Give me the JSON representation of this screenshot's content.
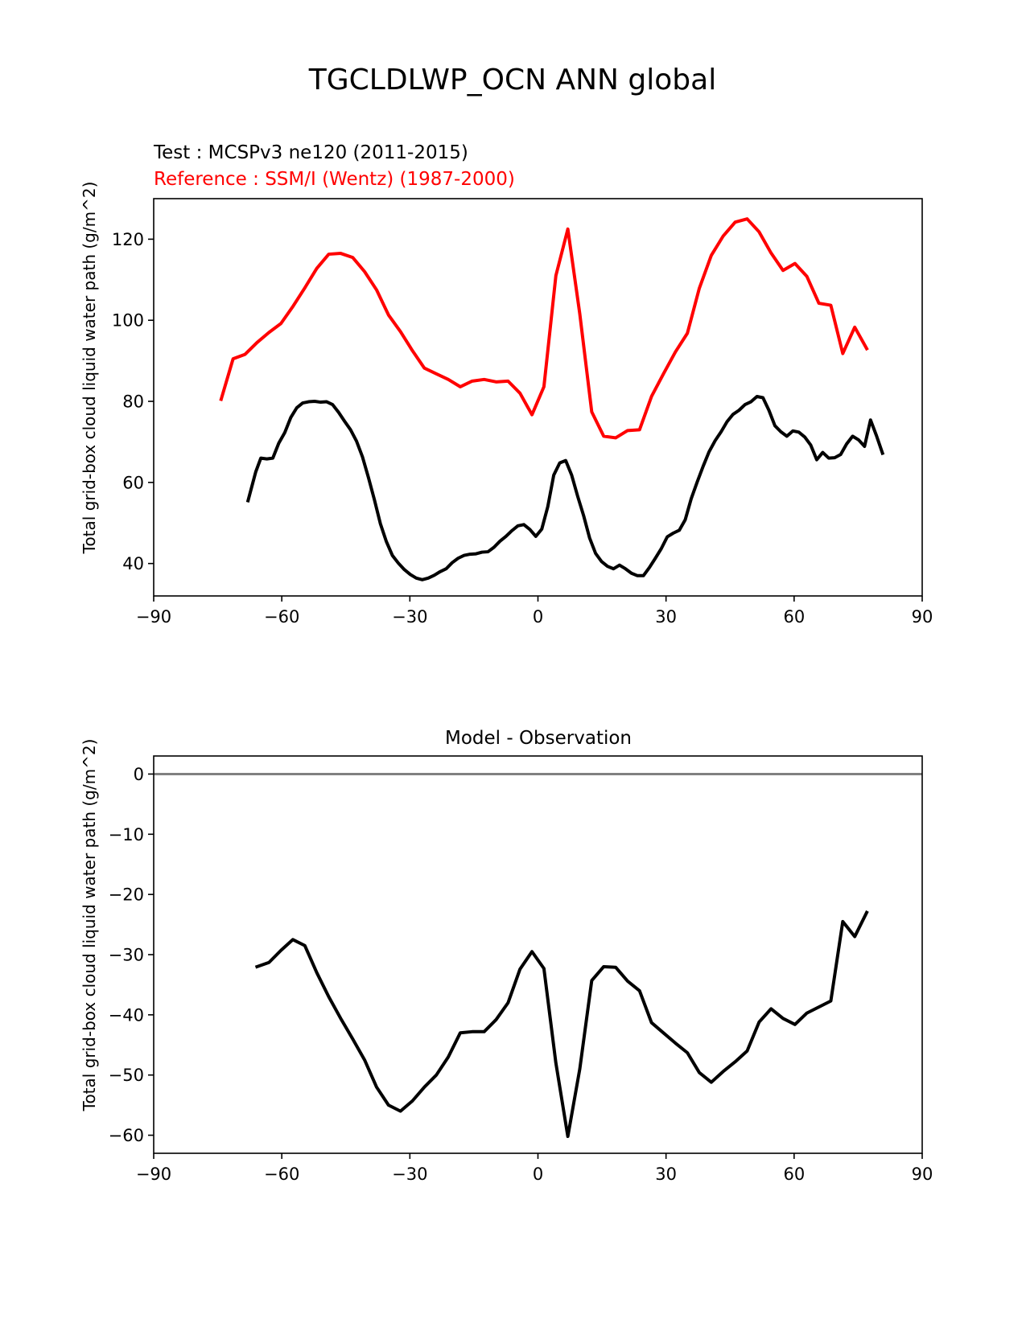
{
  "figure": {
    "title": "TGCLDLWP_OCN ANN global"
  },
  "chart_data": [
    {
      "type": "line",
      "title_test": "Test : MCSPv3 ne120 (2011-2015)",
      "title_reference": "Reference : SSM/I (Wentz) (1987-2000)",
      "xlabel": "",
      "ylabel": "Total grid-box cloud liquid water path (g/m^2)",
      "xlim": [
        -90,
        90
      ],
      "ylim": [
        32,
        130
      ],
      "xticks": [
        -90,
        -60,
        -30,
        0,
        30,
        60,
        90
      ],
      "yticks": [
        40,
        60,
        80,
        100,
        120
      ],
      "grid": false,
      "colors": {
        "test": "#000000",
        "reference": "#ff0000"
      },
      "series": [
        {
          "key": "reference",
          "x": [
            -74.2,
            -71.4,
            -68.6,
            -65.8,
            -63.0,
            -60.2,
            -57.4,
            -54.6,
            -51.8,
            -49.0,
            -46.2,
            -43.4,
            -40.6,
            -37.8,
            -35.0,
            -32.2,
            -29.4,
            -26.6,
            -23.8,
            -21.0,
            -18.2,
            -15.4,
            -12.6,
            -9.8,
            -7.0,
            -4.2,
            -1.4,
            1.4,
            4.2,
            7.0,
            9.8,
            12.6,
            15.4,
            18.2,
            21.0,
            23.8,
            26.6,
            29.4,
            32.2,
            35.0,
            37.8,
            40.6,
            43.4,
            46.2,
            49.0,
            51.8,
            54.6,
            57.4,
            60.2,
            63.0,
            65.8,
            68.6,
            71.4,
            74.2,
            77.0
          ],
          "values": [
            80.5,
            90.5,
            91.6,
            94.5,
            97.0,
            99.2,
            103.4,
            108.0,
            112.8,
            116.3,
            116.5,
            115.5,
            112.0,
            107.5,
            101.3,
            97.2,
            92.5,
            88.2,
            86.8,
            85.4,
            83.6,
            85.0,
            85.4,
            84.8,
            85.0,
            82.0,
            76.7,
            83.6,
            111.0,
            122.5,
            101.6,
            77.4,
            71.4,
            71.0,
            72.8,
            73.0,
            81.2,
            86.8,
            92.2,
            96.8,
            107.9,
            116.0,
            120.8,
            124.2,
            125.0,
            121.8,
            116.6,
            112.3,
            114.0,
            110.8,
            104.2,
            103.7,
            91.8,
            98.3,
            93.0
          ]
        },
        {
          "key": "test",
          "x": [
            -67.9,
            -66.1,
            -64.9,
            -63.5,
            -62.1,
            -60.7,
            -59.3,
            -57.9,
            -56.5,
            -55.1,
            -53.7,
            -52.3,
            -50.9,
            -49.5,
            -48.1,
            -46.7,
            -45.3,
            -43.9,
            -42.5,
            -41.1,
            -39.7,
            -38.3,
            -36.9,
            -35.5,
            -34.1,
            -32.7,
            -31.3,
            -29.9,
            -28.5,
            -27.1,
            -25.7,
            -24.3,
            -22.9,
            -21.5,
            -20.1,
            -18.7,
            -17.3,
            -15.9,
            -14.5,
            -13.1,
            -11.7,
            -10.3,
            -8.9,
            -7.5,
            -6.1,
            -4.7,
            -3.3,
            -1.9,
            -0.5,
            0.9,
            2.3,
            3.7,
            5.1,
            6.5,
            7.9,
            9.3,
            10.7,
            12.1,
            13.5,
            14.9,
            16.3,
            17.7,
            19.1,
            20.5,
            21.9,
            23.3,
            24.7,
            26.1,
            27.5,
            28.9,
            30.3,
            31.7,
            33.1,
            34.5,
            35.9,
            37.3,
            38.7,
            40.1,
            41.5,
            42.9,
            44.3,
            45.7,
            47.1,
            48.5,
            49.9,
            51.3,
            52.7,
            54.1,
            55.5,
            56.9,
            58.3,
            59.7,
            61.1,
            62.5,
            63.9,
            65.3,
            66.7,
            68.1,
            69.5,
            70.9,
            72.3,
            73.7,
            75.1,
            76.5,
            77.9,
            79.3,
            80.7
          ],
          "values": [
            55.5,
            62.6,
            66.0,
            65.8,
            66.0,
            69.7,
            72.3,
            76.0,
            78.4,
            79.6,
            79.9,
            80.0,
            79.8,
            79.9,
            79.2,
            77.3,
            75.1,
            73.0,
            70.2,
            66.3,
            61.2,
            55.7,
            49.8,
            45.4,
            42.0,
            40.1,
            38.5,
            37.3,
            36.4,
            36.0,
            36.4,
            37.1,
            38.0,
            38.7,
            40.2,
            41.3,
            42.0,
            42.3,
            42.4,
            42.8,
            42.9,
            44.0,
            45.5,
            46.7,
            48.1,
            49.3,
            49.6,
            48.4,
            46.7,
            48.5,
            54.0,
            61.8,
            64.8,
            65.4,
            61.8,
            56.6,
            51.8,
            46.3,
            42.5,
            40.5,
            39.3,
            38.7,
            39.6,
            38.7,
            37.6,
            37.0,
            37.0,
            39.0,
            41.3,
            43.7,
            46.6,
            47.5,
            48.2,
            50.8,
            56.0,
            60.1,
            64.0,
            67.6,
            70.3,
            72.5,
            75.0,
            76.8,
            77.8,
            79.2,
            79.9,
            81.2,
            80.9,
            77.8,
            74.0,
            72.5,
            71.4,
            72.7,
            72.4,
            71.2,
            69.2,
            65.6,
            67.4,
            66.0,
            66.1,
            66.9,
            69.5,
            71.4,
            70.5,
            68.9,
            75.4,
            71.5,
            67.2
          ]
        }
      ]
    },
    {
      "type": "line",
      "title": "Model - Observation",
      "xlabel": "",
      "ylabel": "Total grid-box cloud liquid water path (g/m^2)",
      "xlim": [
        -90,
        90
      ],
      "ylim": [
        -63,
        3
      ],
      "xticks": [
        -90,
        -60,
        -30,
        0,
        30,
        60,
        90
      ],
      "yticks": [
        0,
        -10,
        -20,
        -30,
        -40,
        -50,
        -60
      ],
      "grid": false,
      "zero_line": 0,
      "colors": {
        "difference": "#000000",
        "zero_line": "#808080"
      },
      "series": [
        {
          "key": "difference",
          "x": [
            -65.8,
            -63.0,
            -60.2,
            -57.4,
            -54.6,
            -51.8,
            -49.0,
            -46.2,
            -43.4,
            -40.6,
            -37.8,
            -35.0,
            -32.2,
            -29.4,
            -26.6,
            -23.8,
            -21.0,
            -18.2,
            -15.4,
            -12.6,
            -9.8,
            -7.0,
            -4.2,
            -1.4,
            1.4,
            4.2,
            7.0,
            9.8,
            12.6,
            15.4,
            18.2,
            21.0,
            23.8,
            26.6,
            29.4,
            32.2,
            35.0,
            37.8,
            40.6,
            43.4,
            46.2,
            49.0,
            51.8,
            54.6,
            57.4,
            60.2,
            63.0,
            65.8,
            68.6,
            71.4,
            74.2,
            77.0
          ],
          "values": [
            -32.0,
            -31.3,
            -29.3,
            -27.5,
            -28.5,
            -33.0,
            -37.0,
            -40.6,
            -44.0,
            -47.5,
            -52.0,
            -55.0,
            -56.0,
            -54.3,
            -52.0,
            -50.0,
            -47.0,
            -43.0,
            -42.8,
            -42.8,
            -40.8,
            -38.0,
            -32.4,
            -29.5,
            -32.3,
            -48.0,
            -60.2,
            -49.0,
            -34.3,
            -32.0,
            -32.1,
            -34.4,
            -36.0,
            -41.3,
            -43.0,
            -44.7,
            -46.3,
            -49.6,
            -51.2,
            -49.4,
            -47.8,
            -46.0,
            -41.2,
            -39.0,
            -40.6,
            -41.6,
            -39.7,
            -38.7,
            -37.7,
            -24.5,
            -27.0,
            -23.0
          ]
        }
      ]
    }
  ]
}
